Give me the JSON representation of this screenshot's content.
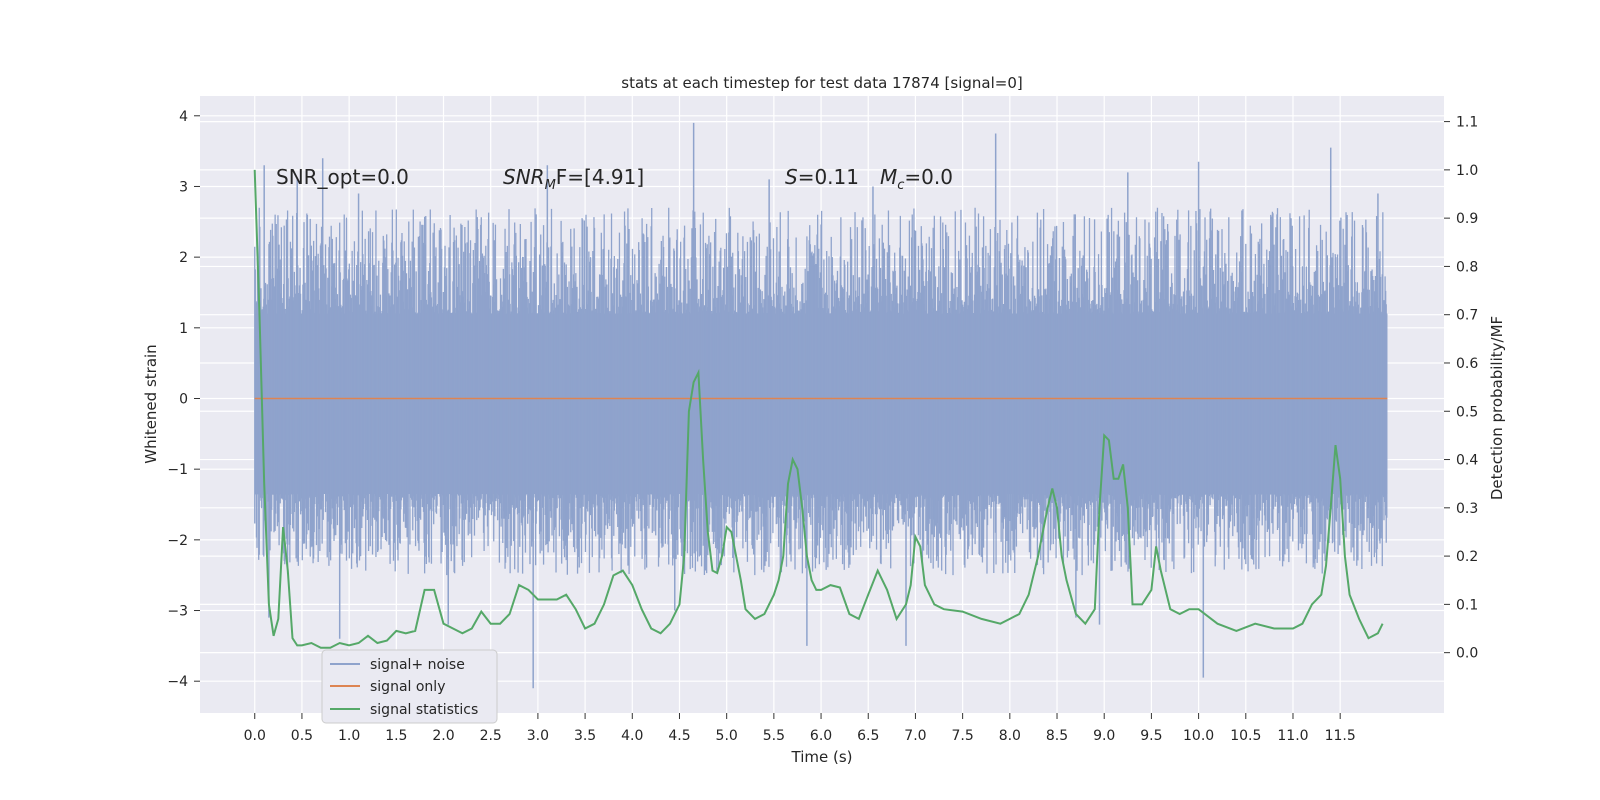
{
  "chart_data": {
    "type": "line",
    "title": "stats at each timestep for test data 17874 [signal=0]",
    "xlabel": "Time (s)",
    "ylabel": "Whitened strain",
    "y2label": "Detection probability/MF",
    "xlim": [
      -0.58,
      12.6
    ],
    "ylim": [
      -4.45,
      4.28
    ],
    "y2lim": [
      -0.125,
      1.153
    ],
    "xticks": [
      "0.0",
      "0.5",
      "1.0",
      "1.5",
      "2.0",
      "2.5",
      "3.0",
      "3.5",
      "4.0",
      "4.5",
      "5.0",
      "5.5",
      "6.0",
      "6.5",
      "7.0",
      "7.5",
      "8.0",
      "8.5",
      "9.0",
      "9.5",
      "10.0",
      "10.5",
      "11.0",
      "11.5"
    ],
    "yticks": [
      "4",
      "3",
      "2",
      "1",
      "0",
      "−1",
      "−2",
      "−3",
      "−4"
    ],
    "y2ticks": [
      "1.1",
      "1.0",
      "0.9",
      "0.8",
      "0.7",
      "0.6",
      "0.5",
      "0.4",
      "0.3",
      "0.2",
      "0.1",
      "0.0"
    ],
    "grid": true,
    "legend_position": "lower-left",
    "annotations": {
      "snr_opt": "SNR_opt=0.0",
      "snr_mf_base": "SNR",
      "snr_mf_sub": "M",
      "snr_mf_rest": "F=[4.91]",
      "s_var": "S",
      "s_val": "=0.11",
      "mc_var": "M",
      "mc_sub": "c",
      "mc_val": "=0.0"
    },
    "colors": {
      "background": "#eaeaf2",
      "grid": "#ffffff",
      "noise": "#8fa3cc",
      "signal": "#dd8452",
      "stats": "#55a868"
    },
    "series": [
      {
        "name": "signal+ noise",
        "axis": "left",
        "style": "dense noise band",
        "x_range": [
          0.0,
          12.0
        ],
        "band": [
          -2.0,
          2.4
        ],
        "spikes": [
          [
            0.1,
            3.3
          ],
          [
            0.15,
            -3.1
          ],
          [
            0.45,
            3.1
          ],
          [
            0.72,
            3.4
          ],
          [
            0.9,
            -3.4
          ],
          [
            1.1,
            2.9
          ],
          [
            2.05,
            -3.2
          ],
          [
            2.95,
            -4.1
          ],
          [
            3.1,
            3.3
          ],
          [
            4.65,
            3.9
          ],
          [
            4.45,
            -3.0
          ],
          [
            5.45,
            3.1
          ],
          [
            5.85,
            -3.5
          ],
          [
            6.55,
            3.0
          ],
          [
            6.9,
            -3.5
          ],
          [
            7.85,
            3.75
          ],
          [
            8.7,
            -3.1
          ],
          [
            8.95,
            -3.2
          ],
          [
            9.25,
            3.2
          ],
          [
            10.0,
            3.35
          ],
          [
            10.05,
            -3.95
          ],
          [
            11.4,
            3.55
          ],
          [
            11.9,
            2.9
          ]
        ]
      },
      {
        "name": "signal only",
        "axis": "left",
        "x": [
          0.0,
          12.0
        ],
        "y": [
          0.0,
          0.0
        ]
      },
      {
        "name": "signal statistics",
        "axis": "right",
        "x": [
          0.0,
          0.05,
          0.1,
          0.15,
          0.2,
          0.25,
          0.3,
          0.35,
          0.4,
          0.45,
          0.5,
          0.6,
          0.7,
          0.8,
          0.9,
          1.0,
          1.1,
          1.2,
          1.3,
          1.4,
          1.5,
          1.6,
          1.7,
          1.8,
          1.9,
          2.0,
          2.1,
          2.2,
          2.3,
          2.4,
          2.5,
          2.6,
          2.7,
          2.8,
          2.9,
          3.0,
          3.1,
          3.2,
          3.3,
          3.4,
          3.5,
          3.6,
          3.7,
          3.8,
          3.9,
          4.0,
          4.1,
          4.2,
          4.3,
          4.4,
          4.5,
          4.55,
          4.6,
          4.65,
          4.7,
          4.75,
          4.8,
          4.85,
          4.9,
          4.95,
          5.0,
          5.05,
          5.1,
          5.15,
          5.2,
          5.3,
          5.4,
          5.5,
          5.55,
          5.6,
          5.65,
          5.7,
          5.75,
          5.8,
          5.85,
          5.9,
          5.95,
          6.0,
          6.1,
          6.2,
          6.3,
          6.4,
          6.5,
          6.6,
          6.7,
          6.8,
          6.9,
          6.95,
          7.0,
          7.05,
          7.1,
          7.2,
          7.3,
          7.5,
          7.7,
          7.9,
          8.0,
          8.1,
          8.2,
          8.3,
          8.4,
          8.45,
          8.5,
          8.55,
          8.6,
          8.7,
          8.8,
          8.9,
          8.95,
          9.0,
          9.05,
          9.1,
          9.15,
          9.2,
          9.25,
          9.3,
          9.4,
          9.5,
          9.55,
          9.6,
          9.7,
          9.8,
          9.9,
          10.0,
          10.2,
          10.4,
          10.6,
          10.8,
          11.0,
          11.1,
          11.2,
          11.3,
          11.35,
          11.4,
          11.45,
          11.5,
          11.55,
          11.6,
          11.7,
          11.8,
          11.9,
          11.95
        ],
        "y": [
          1.0,
          0.7,
          0.35,
          0.1,
          0.035,
          0.07,
          0.26,
          0.17,
          0.03,
          0.015,
          0.015,
          0.02,
          0.01,
          0.01,
          0.02,
          0.015,
          0.02,
          0.035,
          0.02,
          0.025,
          0.045,
          0.04,
          0.045,
          0.13,
          0.13,
          0.06,
          0.05,
          0.04,
          0.05,
          0.085,
          0.06,
          0.06,
          0.08,
          0.14,
          0.13,
          0.11,
          0.11,
          0.11,
          0.12,
          0.09,
          0.05,
          0.06,
          0.1,
          0.16,
          0.17,
          0.14,
          0.09,
          0.05,
          0.04,
          0.06,
          0.1,
          0.2,
          0.5,
          0.56,
          0.58,
          0.4,
          0.25,
          0.17,
          0.165,
          0.2,
          0.26,
          0.25,
          0.2,
          0.15,
          0.09,
          0.07,
          0.08,
          0.12,
          0.15,
          0.2,
          0.35,
          0.4,
          0.38,
          0.3,
          0.2,
          0.15,
          0.13,
          0.13,
          0.14,
          0.135,
          0.08,
          0.07,
          0.12,
          0.17,
          0.13,
          0.07,
          0.1,
          0.14,
          0.24,
          0.22,
          0.14,
          0.1,
          0.09,
          0.085,
          0.07,
          0.06,
          0.07,
          0.08,
          0.12,
          0.2,
          0.3,
          0.34,
          0.3,
          0.2,
          0.15,
          0.08,
          0.06,
          0.09,
          0.3,
          0.45,
          0.44,
          0.36,
          0.36,
          0.39,
          0.3,
          0.1,
          0.1,
          0.13,
          0.22,
          0.17,
          0.09,
          0.08,
          0.09,
          0.09,
          0.06,
          0.045,
          0.06,
          0.05,
          0.05,
          0.06,
          0.1,
          0.12,
          0.18,
          0.3,
          0.43,
          0.36,
          0.2,
          0.12,
          0.07,
          0.03,
          0.04,
          0.06
        ]
      }
    ]
  }
}
